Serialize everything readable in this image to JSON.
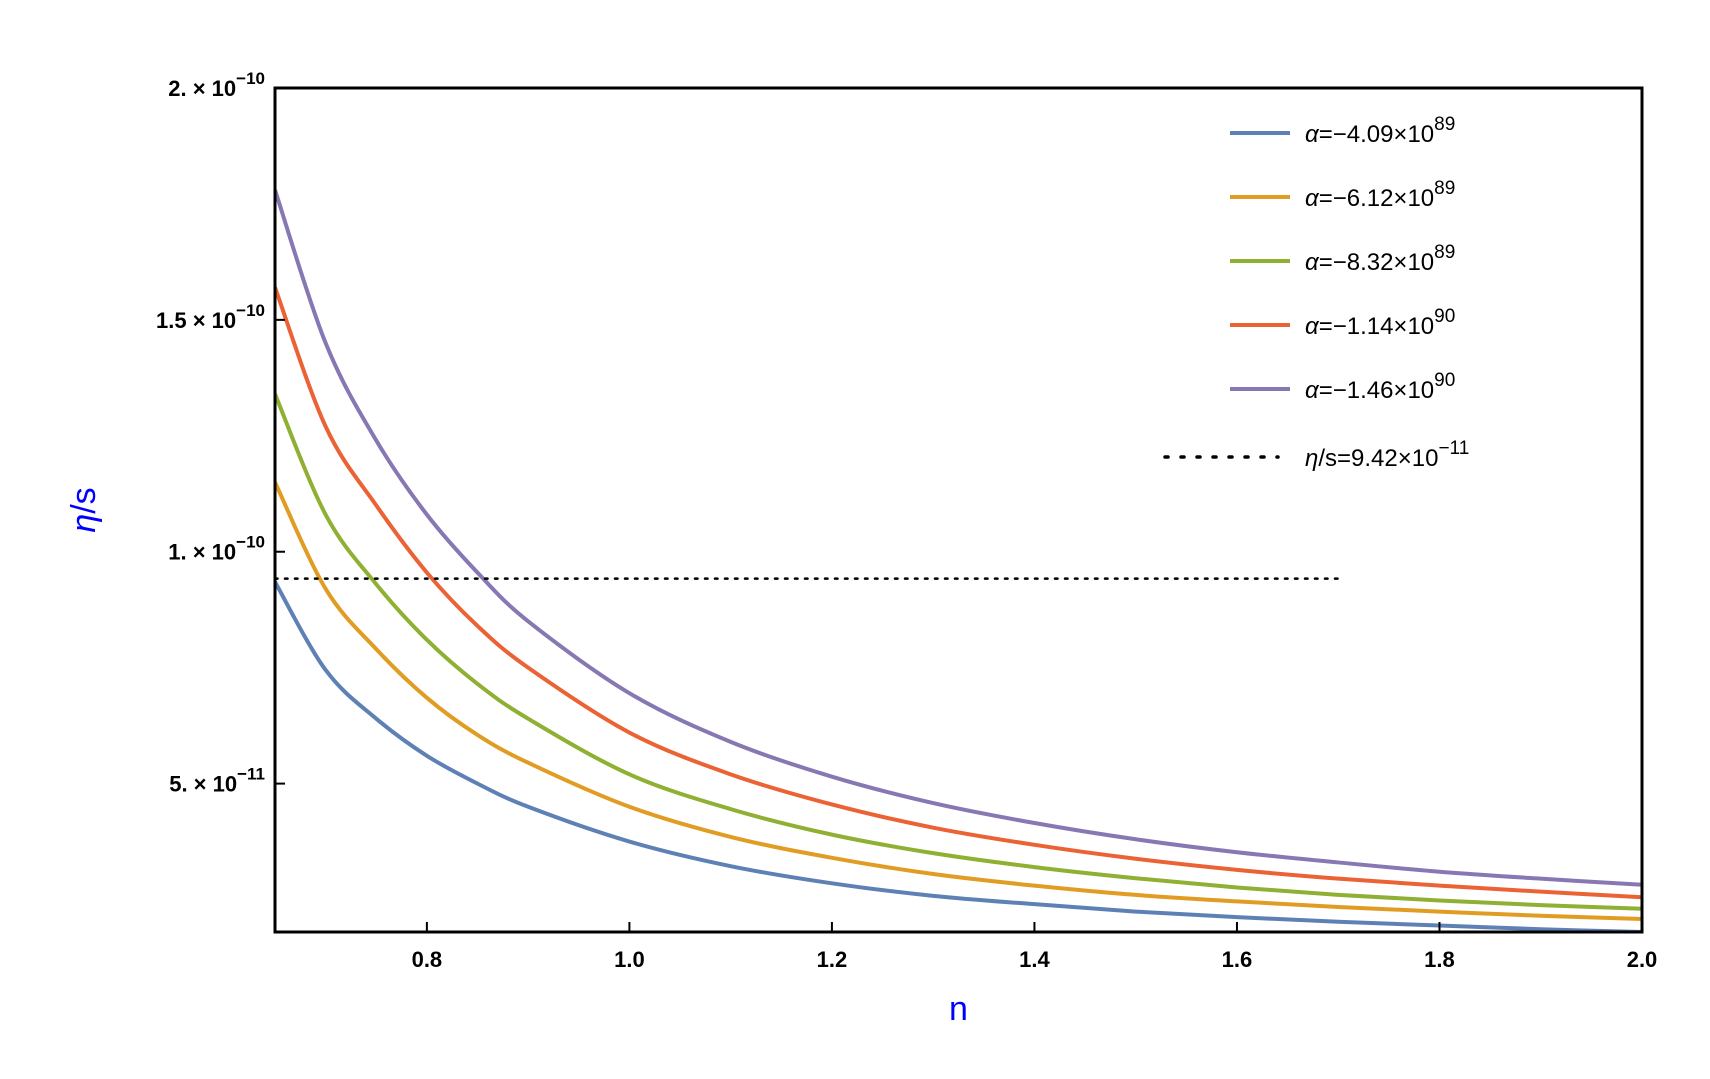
{
  "chart_data": {
    "type": "line",
    "xlabel": "n",
    "ylabel": "η/s",
    "xlim": [
      0.65,
      2.0
    ],
    "ylim": [
      1.8e-11,
      2e-10
    ],
    "axis_label_color": "#0000ff",
    "grid": false,
    "legend_placement": "top-right",
    "x_ticks": [
      {
        "value": 0.8,
        "label": "0.8"
      },
      {
        "value": 1.0,
        "label": "1.0"
      },
      {
        "value": 1.2,
        "label": "1.2"
      },
      {
        "value": 1.4,
        "label": "1.4"
      },
      {
        "value": 1.6,
        "label": "1.6"
      },
      {
        "value": 1.8,
        "label": "1.8"
      },
      {
        "value": 2.0,
        "label": "2.0"
      }
    ],
    "y_ticks": [
      {
        "value": 5e-11,
        "mantissa": "5.",
        "exponent": "−11"
      },
      {
        "value": 1e-10,
        "mantissa": "1.",
        "exponent": "−10"
      },
      {
        "value": 1.5e-10,
        "mantissa": "1.5",
        "exponent": "−10"
      },
      {
        "value": 2e-10,
        "mantissa": "2.",
        "exponent": "−10"
      }
    ],
    "series": [
      {
        "name": "α=−4.09×10^89",
        "legend_prefix": "α",
        "legend_body": "=−4.09×10",
        "legend_exp": "89",
        "color": "#5e81b5",
        "x": [
          0.65,
          0.7,
          0.75,
          0.8,
          0.85,
          0.9,
          1.0,
          1.1,
          1.2,
          1.3,
          1.4,
          1.5,
          1.6,
          1.7,
          1.8,
          1.9,
          2.0
        ],
        "y": [
          9.35e-11,
          7.45e-11,
          6.4e-11,
          5.6e-11,
          5e-11,
          4.5e-11,
          3.75e-11,
          3.22e-11,
          2.85e-11,
          2.58e-11,
          2.4e-11,
          2.24e-11,
          2.12e-11,
          2.02e-11,
          1.94e-11,
          1.86e-11,
          1.8e-11
        ]
      },
      {
        "name": "α=−6.12×10^89",
        "legend_prefix": "α",
        "legend_body": "=−6.12×10",
        "legend_exp": "89",
        "color": "#e19c24",
        "x": [
          0.65,
          0.7,
          0.75,
          0.8,
          0.85,
          0.9,
          1.0,
          1.1,
          1.2,
          1.3,
          1.4,
          1.5,
          1.6,
          1.7,
          1.8,
          1.9,
          2.0
        ],
        "y": [
          1.15e-10,
          9.2e-11,
          7.9e-11,
          6.85e-11,
          6.05e-11,
          5.45e-11,
          4.5e-11,
          3.85e-11,
          3.4e-11,
          3.05e-11,
          2.8e-11,
          2.6e-11,
          2.46e-11,
          2.34e-11,
          2.24e-11,
          2.15e-11,
          2.08e-11
        ]
      },
      {
        "name": "α=−8.32×10^89",
        "legend_prefix": "α",
        "legend_body": "=−8.32×10",
        "legend_exp": "89",
        "color": "#8fb032",
        "x": [
          0.65,
          0.7,
          0.75,
          0.8,
          0.85,
          0.9,
          1.0,
          1.1,
          1.2,
          1.3,
          1.4,
          1.5,
          1.6,
          1.7,
          1.8,
          1.9,
          2.0
        ],
        "y": [
          1.34e-10,
          1.08e-10,
          9.3e-11,
          8.1e-11,
          7.15e-11,
          6.4e-11,
          5.2e-11,
          4.45e-11,
          3.9e-11,
          3.5e-11,
          3.2e-11,
          2.96e-11,
          2.76e-11,
          2.6e-11,
          2.48e-11,
          2.38e-11,
          2.3e-11
        ]
      },
      {
        "name": "α=−1.14×10^90",
        "legend_prefix": "α",
        "legend_body": "=−1.14×10",
        "legend_exp": "90",
        "color": "#eb6235",
        "x": [
          0.65,
          0.7,
          0.75,
          0.8,
          0.85,
          0.9,
          1.0,
          1.1,
          1.2,
          1.3,
          1.4,
          1.5,
          1.6,
          1.7,
          1.8,
          1.9,
          2.0
        ],
        "y": [
          1.57e-10,
          1.27e-10,
          1.1e-10,
          9.55e-11,
          8.4e-11,
          7.5e-11,
          6.1e-11,
          5.2e-11,
          4.55e-11,
          4.05e-11,
          3.68e-11,
          3.38e-11,
          3.14e-11,
          2.95e-11,
          2.8e-11,
          2.67e-11,
          2.55e-11
        ]
      },
      {
        "name": "α=−1.46×10^90",
        "legend_prefix": "α",
        "legend_body": "=−1.46×10",
        "legend_exp": "90",
        "color": "#8778b3",
        "x": [
          0.65,
          0.7,
          0.75,
          0.8,
          0.85,
          0.9,
          1.0,
          1.1,
          1.2,
          1.3,
          1.4,
          1.5,
          1.6,
          1.7,
          1.8,
          1.9,
          2.0
        ],
        "y": [
          1.78e-10,
          1.45e-10,
          1.24e-10,
          1.08e-10,
          9.55e-11,
          8.5e-11,
          6.95e-11,
          5.9e-11,
          5.15e-11,
          4.58e-11,
          4.15e-11,
          3.8e-11,
          3.52e-11,
          3.3e-11,
          3.1e-11,
          2.95e-11,
          2.82e-11
        ]
      }
    ],
    "reference_line": {
      "name": "η/s=9.42×10^−11",
      "legend_prefix": "η",
      "legend_body": "/s=9.42×10",
      "legend_exp": "−11",
      "color": "#000000",
      "style": "dotted",
      "y": 9.42e-11,
      "x_range": [
        0.65,
        1.7
      ]
    }
  }
}
